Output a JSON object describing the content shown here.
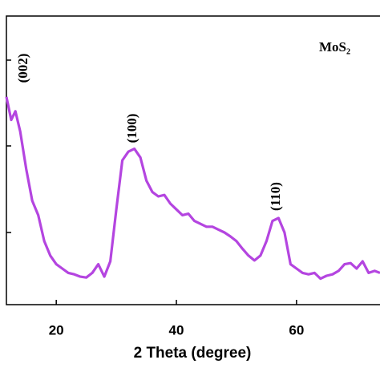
{
  "chart_data": {
    "type": "line",
    "x_label": "2 Theta (degree)",
    "annotations": [
      "(002)",
      "(100)",
      "(110)",
      "MoS₂"
    ],
    "xlim": [
      11.7,
      73.9
    ],
    "xticks": [
      20,
      40,
      60
    ],
    "ylim": [
      0,
      100
    ],
    "series": [
      {
        "color": "#b445e0",
        "x": [
          11.7,
          12.5,
          13.2,
          14,
          15,
          16,
          17,
          18,
          19,
          20,
          21,
          22,
          23,
          24,
          25,
          26,
          27,
          28,
          29,
          30,
          31,
          32,
          33,
          34,
          35,
          36,
          37,
          38,
          39,
          40,
          41,
          42,
          43,
          44,
          45,
          46,
          47,
          48,
          49,
          50,
          51,
          52,
          53,
          54,
          55,
          56,
          57,
          58,
          59,
          60,
          61,
          62,
          63,
          64,
          65,
          66,
          67,
          68,
          69,
          70,
          71,
          72,
          73,
          73.9
        ],
        "values": [
          72,
          64,
          67,
          60,
          47,
          36,
          31,
          22,
          17,
          14,
          12.5,
          11,
          10.5,
          9.7,
          9.4,
          11,
          14,
          9.7,
          15,
          33,
          50,
          53,
          54,
          51,
          43,
          39,
          37.5,
          38,
          35,
          33,
          31,
          31.5,
          29,
          28,
          27,
          27,
          26,
          25,
          23.6,
          22,
          19.4,
          17,
          15.3,
          17,
          22,
          29,
          30,
          25,
          14,
          12.5,
          11,
          10.5,
          11,
          9,
          10,
          10.5,
          11.7,
          14,
          14.4,
          12.5,
          15,
          11,
          11.7,
          11
        ]
      }
    ]
  }
}
